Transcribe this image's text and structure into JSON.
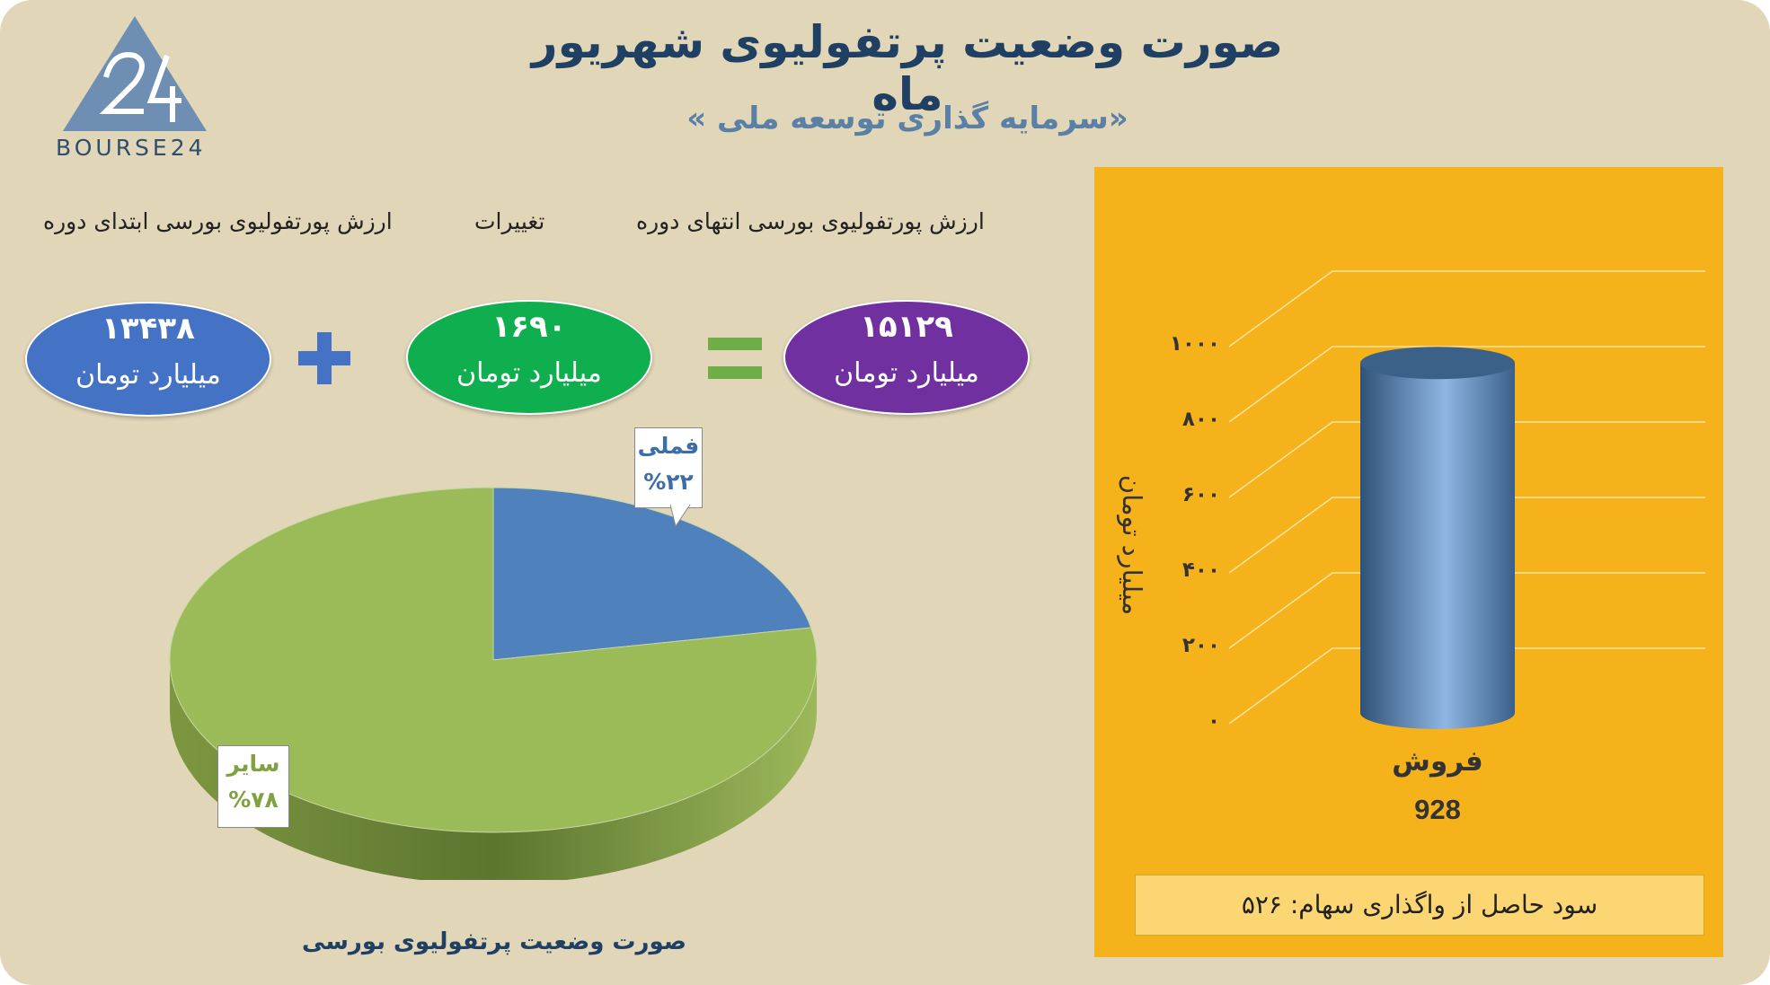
{
  "header": {
    "title": "صورت وضعیت پرتفولیوی شهریور ماه",
    "subtitle": "«سرمایه گذاری توسعه ملی »",
    "logo_text": "BOURSE24"
  },
  "summary": {
    "start_label": "ارزش پورتفولیوی بورسی ابتدای دوره",
    "change_label": "تغییرات",
    "end_label": "ارزش پورتفولیوی بورسی انتهای دوره",
    "start_value": "۱۳۴۳۸",
    "change_value": "۱۶۹۰",
    "end_value": "۱۵۱۲۹",
    "unit": "میلیارد تومان",
    "plus_icon": "plus-icon",
    "equals_icon": "equals-icon",
    "colors": {
      "start": "#4472c4",
      "change": "#0faf4f",
      "end": "#7030a0"
    }
  },
  "chart_data": [
    {
      "type": "pie",
      "title": "صورت وضعیت پرتفولیوی بورسی",
      "categories": [
        "فملی",
        "سایر"
      ],
      "values": [
        22,
        78
      ],
      "labels": [
        "%۲۲",
        "%۷۸"
      ],
      "colors": [
        "#4f81bd",
        "#9bbb59"
      ]
    },
    {
      "type": "bar",
      "categories": [
        "فروش"
      ],
      "values": [
        928
      ],
      "value_label": "928",
      "ylabel": "میلیارد تومان",
      "ylim": [
        0,
        1000
      ],
      "yticks": [
        "۰",
        "۲۰۰",
        "۴۰۰",
        "۶۰۰",
        "۸۰۰",
        "۱۰۰۰"
      ],
      "grid": true,
      "bar_color": "#4f81bd"
    }
  ],
  "footer": {
    "profit_text": "سود حاصل از واگذاری سهام: ۵۲۶"
  }
}
